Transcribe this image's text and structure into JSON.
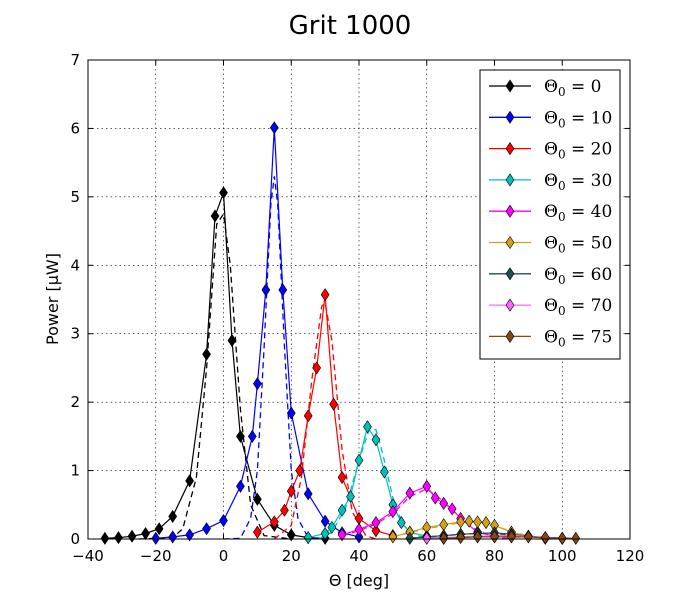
{
  "chart_data": {
    "type": "line",
    "title": "Grit 1000",
    "xlabel": "Θ [deg]",
    "ylabel": "Power [μW]",
    "xlim": [
      -40,
      120
    ],
    "ylim": [
      0,
      7
    ],
    "xticks": [
      -40,
      -20,
      0,
      20,
      40,
      60,
      80,
      100,
      120
    ],
    "yticks": [
      0,
      1,
      2,
      3,
      4,
      5,
      6,
      7
    ],
    "xtick_labels": [
      "−40",
      "−20",
      "0",
      "20",
      "40",
      "60",
      "80",
      "100",
      "120"
    ],
    "ytick_labels": [
      "0",
      "1",
      "2",
      "3",
      "4",
      "5",
      "6",
      "7"
    ],
    "grid": true,
    "legend_position": "top-right",
    "series": [
      {
        "name": "Θ₀ = 0",
        "legend_sub": "0",
        "color": "#000000",
        "measured": [
          [
            -35,
            0.01
          ],
          [
            -31,
            0.02
          ],
          [
            -27,
            0.04
          ],
          [
            -23,
            0.08
          ],
          [
            -19,
            0.15
          ],
          [
            -15,
            0.33
          ],
          [
            -10,
            0.85
          ],
          [
            -5,
            2.7
          ],
          [
            -2.5,
            4.72
          ],
          [
            0,
            5.06
          ],
          [
            2.5,
            2.9
          ],
          [
            5,
            1.5
          ],
          [
            10,
            0.58
          ],
          [
            15,
            0.2
          ],
          [
            20,
            0.06
          ],
          [
            25,
            0.02
          ],
          [
            30,
            0.01
          ]
        ],
        "fit": [
          [
            -25,
            0
          ],
          [
            -15,
            0.02
          ],
          [
            -12,
            0.15
          ],
          [
            -8,
            0.9
          ],
          [
            -5,
            2.5
          ],
          [
            -2,
            4.6
          ],
          [
            0,
            4.75
          ],
          [
            2,
            4.0
          ],
          [
            5,
            1.9
          ],
          [
            8,
            0.5
          ],
          [
            12,
            0.05
          ],
          [
            20,
            0
          ]
        ]
      },
      {
        "name": "Θ₀ = 10",
        "legend_sub": "10",
        "color": "#0000ff",
        "measured": [
          [
            -20,
            0.01
          ],
          [
            -15,
            0.03
          ],
          [
            -10,
            0.06
          ],
          [
            -5,
            0.15
          ],
          [
            0,
            0.27
          ],
          [
            5,
            0.77
          ],
          [
            8.5,
            1.5
          ],
          [
            10,
            2.27
          ],
          [
            12.5,
            3.64
          ],
          [
            15,
            6.01
          ],
          [
            17.5,
            3.64
          ],
          [
            20,
            1.84
          ],
          [
            25,
            0.66
          ],
          [
            30,
            0.26
          ],
          [
            35,
            0.09
          ],
          [
            40,
            0.03
          ]
        ],
        "fit": [
          [
            0,
            0
          ],
          [
            5,
            0.01
          ],
          [
            8,
            0.3
          ],
          [
            10,
            1.0
          ],
          [
            12,
            2.8
          ],
          [
            14,
            4.9
          ],
          [
            15,
            5.3
          ],
          [
            16,
            4.9
          ],
          [
            18,
            2.8
          ],
          [
            20,
            1.0
          ],
          [
            22,
            0.3
          ],
          [
            25,
            0.02
          ],
          [
            30,
            0
          ]
        ]
      },
      {
        "name": "Θ₀ = 20",
        "legend_sub": "20",
        "color": "#ff0000",
        "measured": [
          [
            10,
            0.1
          ],
          [
            15,
            0.25
          ],
          [
            18,
            0.42
          ],
          [
            20,
            0.7
          ],
          [
            22.5,
            1.0
          ],
          [
            25,
            1.8
          ],
          [
            27.5,
            2.5
          ],
          [
            30,
            3.57
          ],
          [
            32.5,
            1.97
          ],
          [
            35,
            0.9
          ],
          [
            40,
            0.3
          ],
          [
            45,
            0.12
          ],
          [
            50,
            0.05
          ]
        ],
        "fit": [
          [
            15,
            0
          ],
          [
            20,
            0.2
          ],
          [
            23,
            0.9
          ],
          [
            26,
            2.3
          ],
          [
            29,
            3.4
          ],
          [
            30,
            3.45
          ],
          [
            32,
            2.9
          ],
          [
            35,
            1.3
          ],
          [
            38,
            0.4
          ],
          [
            42,
            0.05
          ],
          [
            45,
            0
          ]
        ]
      },
      {
        "name": "Θ₀ = 30",
        "legend_sub": "30",
        "color": "#00bfbf",
        "measured": [
          [
            25,
            0.02
          ],
          [
            30,
            0.08
          ],
          [
            32,
            0.17
          ],
          [
            35,
            0.42
          ],
          [
            37.5,
            0.62
          ],
          [
            40,
            1.15
          ],
          [
            42.5,
            1.64
          ],
          [
            45,
            1.45
          ],
          [
            47.5,
            0.98
          ],
          [
            50,
            0.5
          ],
          [
            52.5,
            0.24
          ],
          [
            55,
            0.1
          ],
          [
            60,
            0.04
          ],
          [
            65,
            0.01
          ]
        ],
        "fit": [
          [
            28,
            0
          ],
          [
            32,
            0.1
          ],
          [
            36,
            0.45
          ],
          [
            40,
            1.15
          ],
          [
            43,
            1.6
          ],
          [
            45,
            1.6
          ],
          [
            47,
            1.25
          ],
          [
            50,
            0.6
          ],
          [
            53,
            0.2
          ],
          [
            57,
            0.05
          ],
          [
            62,
            0
          ]
        ]
      },
      {
        "name": "Θ₀ = 40",
        "legend_sub": "40",
        "color": "#ff00ff",
        "measured": [
          [
            35,
            0.06
          ],
          [
            40,
            0.14
          ],
          [
            45,
            0.24
          ],
          [
            50,
            0.4
          ],
          [
            55,
            0.67
          ],
          [
            60,
            0.77
          ],
          [
            62.5,
            0.6
          ],
          [
            65,
            0.52
          ],
          [
            67.5,
            0.44
          ],
          [
            70,
            0.3
          ],
          [
            75,
            0.1
          ],
          [
            80,
            0.04
          ]
        ],
        "fit": [
          [
            35,
            0.05
          ],
          [
            40,
            0.12
          ],
          [
            45,
            0.22
          ],
          [
            50,
            0.37
          ],
          [
            55,
            0.62
          ],
          [
            60,
            0.73
          ],
          [
            65,
            0.55
          ],
          [
            70,
            0.3
          ],
          [
            75,
            0.12
          ],
          [
            80,
            0.03
          ],
          [
            85,
            0
          ]
        ]
      },
      {
        "name": "Θ₀ = 50",
        "legend_sub": "50",
        "color": "#d4a017",
        "measured": [
          [
            50,
            0.03
          ],
          [
            55,
            0.1
          ],
          [
            60,
            0.17
          ],
          [
            65,
            0.21
          ],
          [
            70,
            0.25
          ],
          [
            72.5,
            0.26
          ],
          [
            75,
            0.25
          ],
          [
            77.5,
            0.24
          ],
          [
            80,
            0.2
          ],
          [
            85,
            0.1
          ],
          [
            90,
            0.04
          ],
          [
            95,
            0.01
          ]
        ],
        "fit": [
          [
            50,
            0.03
          ],
          [
            60,
            0.15
          ],
          [
            70,
            0.24
          ],
          [
            75,
            0.25
          ],
          [
            80,
            0.19
          ],
          [
            90,
            0.04
          ],
          [
            98,
            0
          ]
        ]
      },
      {
        "name": "Θ₀ = 60",
        "legend_sub": "60",
        "color": "#1f4f4f",
        "measured": [
          [
            55,
            0.01
          ],
          [
            60,
            0.03
          ],
          [
            65,
            0.05
          ],
          [
            70,
            0.07
          ],
          [
            75,
            0.08
          ],
          [
            80,
            0.09
          ],
          [
            85,
            0.07
          ],
          [
            90,
            0.04
          ],
          [
            95,
            0.02
          ],
          [
            100,
            0.01
          ]
        ],
        "fit": [
          [
            55,
            0.01
          ],
          [
            65,
            0.05
          ],
          [
            75,
            0.08
          ],
          [
            80,
            0.08
          ],
          [
            90,
            0.04
          ],
          [
            100,
            0.01
          ]
        ]
      },
      {
        "name": "Θ₀ = 70",
        "legend_sub": "70",
        "color": "#ff66ff",
        "measured": [
          [
            60,
            0.01
          ],
          [
            65,
            0.02
          ],
          [
            70,
            0.03
          ],
          [
            75,
            0.04
          ],
          [
            80,
            0.05
          ],
          [
            85,
            0.05
          ],
          [
            90,
            0.04
          ],
          [
            95,
            0.02
          ],
          [
            100,
            0.01
          ]
        ],
        "fit": [
          [
            60,
            0.01
          ],
          [
            70,
            0.03
          ],
          [
            80,
            0.05
          ],
          [
            85,
            0.05
          ],
          [
            95,
            0.02
          ],
          [
            102,
            0.01
          ]
        ]
      },
      {
        "name": "Θ₀ = 75",
        "legend_sub": "75",
        "color": "#8b4513",
        "measured": [
          [
            65,
            0.01
          ],
          [
            70,
            0.02
          ],
          [
            75,
            0.03
          ],
          [
            80,
            0.03
          ],
          [
            85,
            0.03
          ],
          [
            90,
            0.03
          ],
          [
            95,
            0.02
          ],
          [
            100,
            0.01
          ],
          [
            104,
            0.01
          ]
        ],
        "fit": [
          [
            65,
            0.01
          ],
          [
            75,
            0.03
          ],
          [
            85,
            0.03
          ],
          [
            95,
            0.02
          ],
          [
            105,
            0.01
          ]
        ]
      }
    ]
  }
}
